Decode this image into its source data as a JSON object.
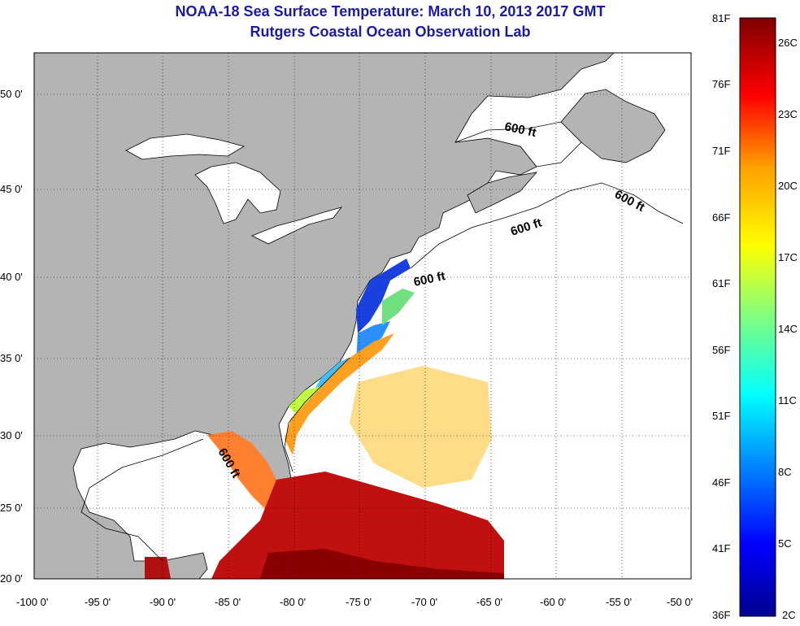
{
  "title_line1": "NOAA-18 Sea Surface Temperature:  March 10, 2013 2017 GMT",
  "title_line2": "Rutgers Coastal Ocean Observation Lab",
  "lon_labels": [
    "-100 0'",
    "-95 0'",
    "-90 0'",
    "-85 0'",
    "-80 0'",
    "-75 0'",
    "-70 0'",
    "-65 0'",
    "-60 0'",
    "-55 0'",
    "-50 0'"
  ],
  "lat_labels": [
    "50 0'",
    "45 0'",
    "40 0'",
    "35 0'",
    "30 0'",
    "25 0'",
    "20 0'"
  ],
  "isobath_labels": [
    "600 ft",
    "600 ft",
    "600 ft",
    "600 ft",
    "600 ft"
  ],
  "colorbar": {
    "f_labels": [
      "81F",
      "76F",
      "71F",
      "66F",
      "61F",
      "56F",
      "51F",
      "46F",
      "41F",
      "36F"
    ],
    "c_labels": [
      "26C",
      "23C",
      "20C",
      "17C",
      "14C",
      "11C",
      "8C",
      "5C",
      "2C"
    ],
    "colormap": "jet"
  },
  "colors": {
    "land": "#b4b4b4",
    "ocean": "#ffffff",
    "title": "#1a1aa6"
  }
}
